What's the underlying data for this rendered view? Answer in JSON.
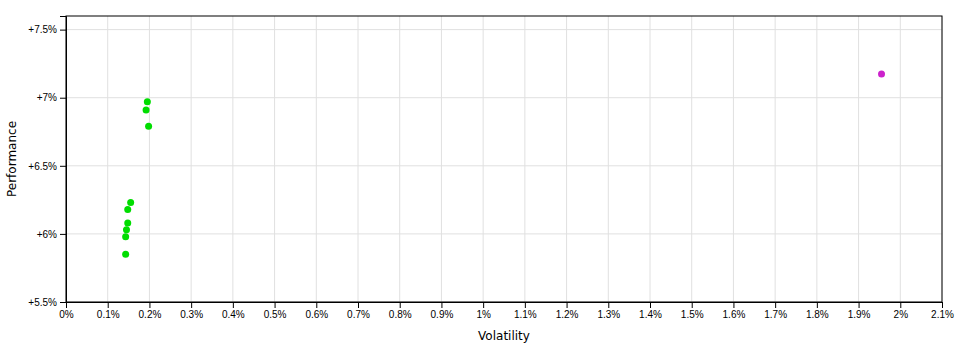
{
  "chart_data": {
    "type": "scatter",
    "xlabel": "Volatility",
    "ylabel": "Performance",
    "xlim": [
      0.0,
      0.021
    ],
    "ylim": [
      0.055,
      0.076
    ],
    "xticks": [
      {
        "value": 0.0,
        "label": "0%"
      },
      {
        "value": 0.001,
        "label": "0.1%"
      },
      {
        "value": 0.002,
        "label": "0.2%"
      },
      {
        "value": 0.003,
        "label": "0.3%"
      },
      {
        "value": 0.004,
        "label": "0.4%"
      },
      {
        "value": 0.005,
        "label": "0.5%"
      },
      {
        "value": 0.006,
        "label": "0.6%"
      },
      {
        "value": 0.007,
        "label": "0.7%"
      },
      {
        "value": 0.008,
        "label": "0.8%"
      },
      {
        "value": 0.009,
        "label": "0.9%"
      },
      {
        "value": 0.01,
        "label": "1%"
      },
      {
        "value": 0.011,
        "label": "1.1%"
      },
      {
        "value": 0.012,
        "label": "1.2%"
      },
      {
        "value": 0.013,
        "label": "1.3%"
      },
      {
        "value": 0.014,
        "label": "1.4%"
      },
      {
        "value": 0.015,
        "label": "1.5%"
      },
      {
        "value": 0.016,
        "label": "1.6%"
      },
      {
        "value": 0.017,
        "label": "1.7%"
      },
      {
        "value": 0.018,
        "label": "1.8%"
      },
      {
        "value": 0.019,
        "label": "1.9%"
      },
      {
        "value": 0.02,
        "label": "2%"
      },
      {
        "value": 0.021,
        "label": "2.1%"
      }
    ],
    "yticks": [
      {
        "value": 0.055,
        "label": "+5.5%"
      },
      {
        "value": 0.06,
        "label": "+6%"
      },
      {
        "value": 0.065,
        "label": "+6.5%"
      },
      {
        "value": 0.07,
        "label": "+7%"
      },
      {
        "value": 0.075,
        "label": "+7.5%"
      }
    ],
    "grid": true,
    "series": [
      {
        "color": "#00dd00",
        "x": [
          0.00195,
          0.00192,
          0.00198,
          0.00155,
          0.00148,
          0.00148,
          0.00145,
          0.00143,
          0.00143
        ],
        "values": [
          0.0697,
          0.0691,
          0.0679,
          0.0623,
          0.0618,
          0.0608,
          0.0603,
          0.0598,
          0.0585
        ]
      },
      {
        "color": "#cc22cc",
        "x": [
          0.01955
        ],
        "values": [
          0.07175
        ]
      }
    ]
  }
}
